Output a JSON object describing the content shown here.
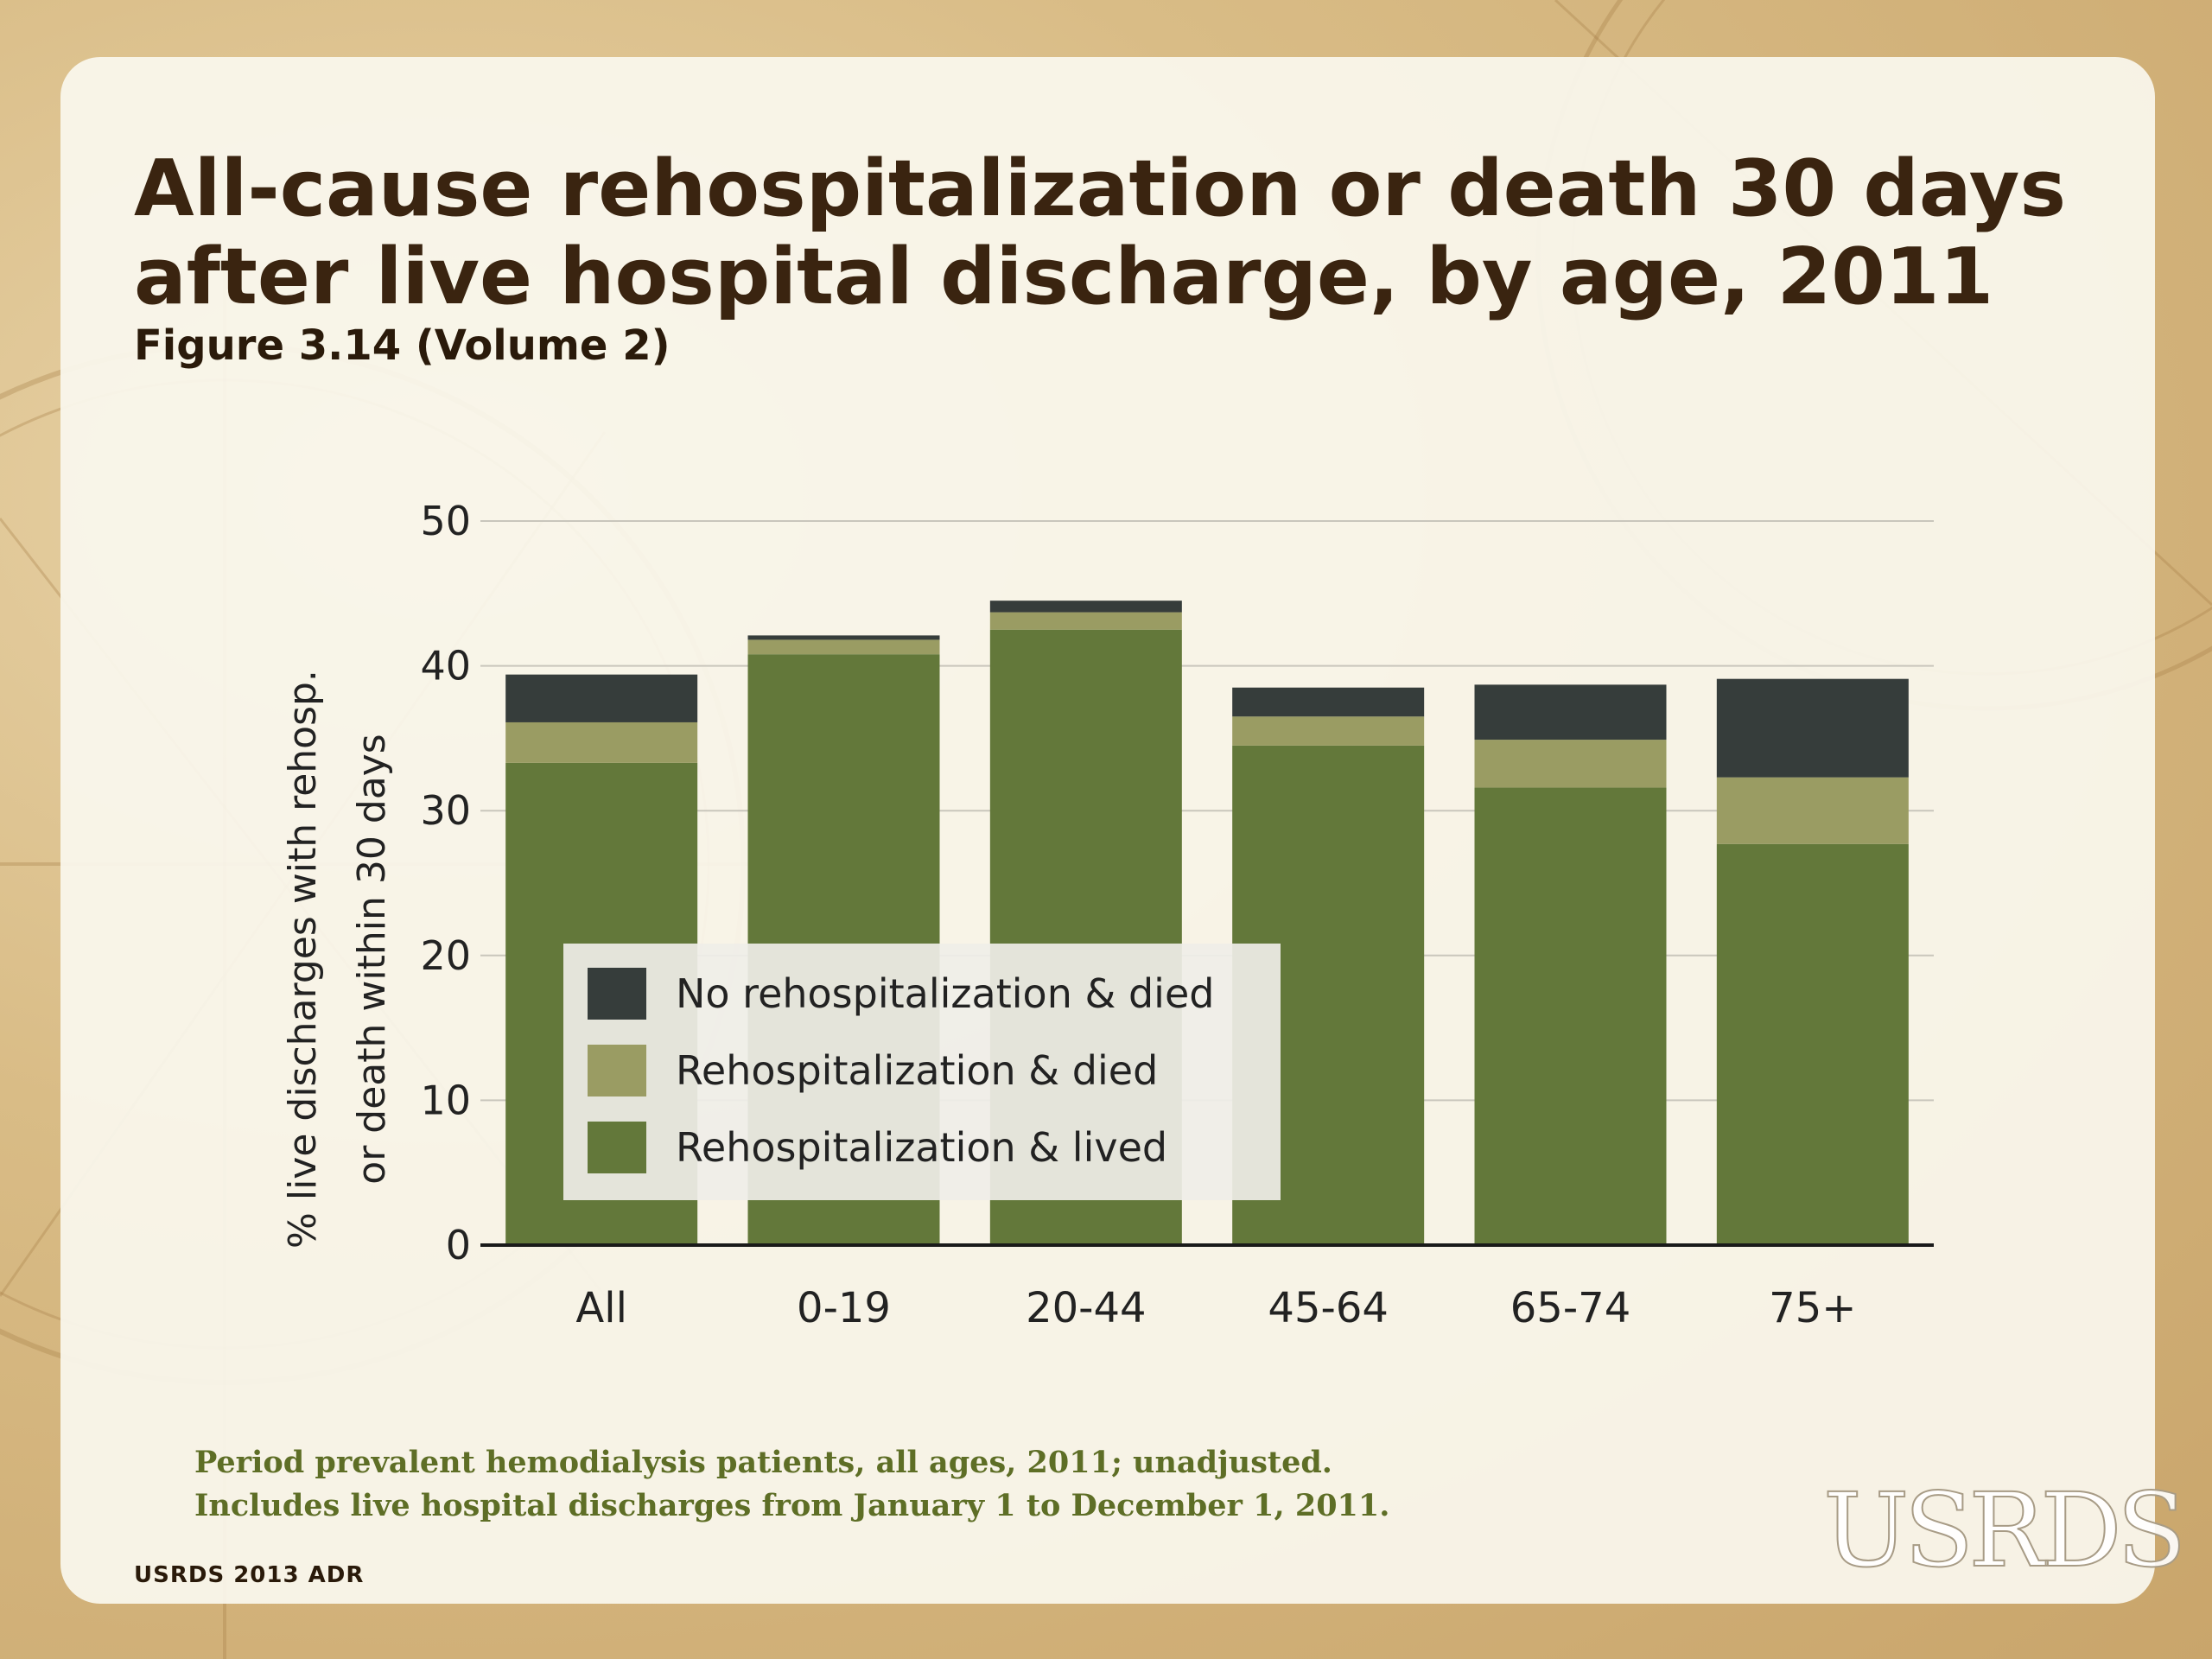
{
  "slide": {
    "title": "All-cause rehospitalization or death 30 days after live hospital discharge, by age, 2011",
    "subtitle": "Figure 3.14 (Volume 2)",
    "notes": [
      "Period prevalent hemodialysis patients, all ages, 2011; unadjusted.",
      "Includes live hospital discharges from January 1 to December 1, 2011."
    ],
    "source": "USRDS 2013 ADR",
    "logo_text": "USRDS"
  },
  "chart_data": {
    "type": "bar",
    "stacked": true,
    "categories": [
      "All",
      "0-19",
      "20-44",
      "45-64",
      "65-74",
      "75+"
    ],
    "series": [
      {
        "name": "Rehospitalization & lived",
        "color": "#63783a",
        "values": [
          33.3,
          40.8,
          42.5,
          34.5,
          31.6,
          27.7
        ]
      },
      {
        "name": "Rehospitalization & died",
        "color": "#9a9c63",
        "values": [
          2.8,
          1.0,
          1.2,
          2.0,
          3.3,
          4.6
        ]
      },
      {
        "name": "No rehospitalization & died",
        "color": "#363d3b",
        "values": [
          3.3,
          0.3,
          0.8,
          2.0,
          3.8,
          6.8
        ]
      }
    ],
    "ylabel": [
      "% live discharges with rehosp.",
      "or death within 30 days"
    ],
    "ylim": [
      0,
      50
    ],
    "yticks": [
      0,
      10,
      20,
      30,
      40,
      50
    ],
    "grid": true,
    "legend": {
      "position": "inside-left",
      "order": [
        "No rehospitalization & died",
        "Rehospitalization & died",
        "Rehospitalization & lived"
      ]
    }
  }
}
